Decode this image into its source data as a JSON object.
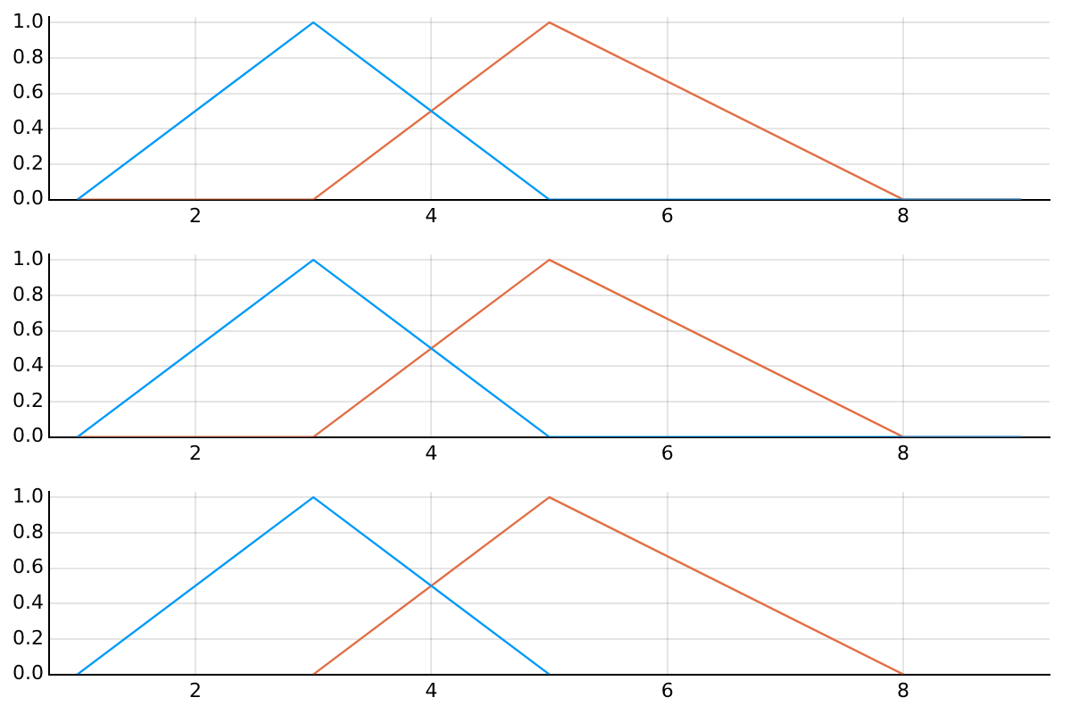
{
  "chart_data": [
    {
      "type": "line",
      "xlim": [
        0.76,
        9.24
      ],
      "ylim": [
        0,
        1.03
      ],
      "xticks": [
        2,
        4,
        6,
        8
      ],
      "yticks": [
        {
          "value": 0,
          "label": "0.0"
        },
        {
          "value": 0.2,
          "label": "0.2"
        },
        {
          "value": 0.4,
          "label": "0.4"
        },
        {
          "value": 0.6,
          "label": "0.6"
        },
        {
          "value": 0.8,
          "label": "0.8"
        },
        {
          "value": 1,
          "label": "1.0"
        }
      ],
      "grid": true,
      "legend": false,
      "series": [
        {
          "color": "#009af9",
          "x": [
            1,
            3,
            5,
            9
          ],
          "values": [
            0,
            1,
            0,
            0
          ]
        },
        {
          "color": "#e26f46",
          "x": [
            1,
            3,
            5,
            8,
            9
          ],
          "values": [
            0,
            0,
            1,
            0,
            0
          ]
        }
      ]
    },
    {
      "type": "line",
      "xlim": [
        0.76,
        9.24
      ],
      "ylim": [
        0,
        1.03
      ],
      "xticks": [
        2,
        4,
        6,
        8
      ],
      "yticks": [
        {
          "value": 0,
          "label": "0.0"
        },
        {
          "value": 0.2,
          "label": "0.2"
        },
        {
          "value": 0.4,
          "label": "0.4"
        },
        {
          "value": 0.6,
          "label": "0.6"
        },
        {
          "value": 0.8,
          "label": "0.8"
        },
        {
          "value": 1,
          "label": "1.0"
        }
      ],
      "grid": true,
      "legend": false,
      "series": [
        {
          "color": "#009af9",
          "x": [
            1,
            3,
            5,
            9
          ],
          "values": [
            0,
            1,
            0,
            0
          ]
        },
        {
          "color": "#e26f46",
          "x": [
            1,
            3,
            5,
            8,
            9
          ],
          "values": [
            0,
            0,
            1,
            0,
            0
          ]
        }
      ]
    },
    {
      "type": "line",
      "xlim": [
        0.76,
        9.24
      ],
      "ylim": [
        0,
        1.03
      ],
      "xticks": [
        2,
        4,
        6,
        8
      ],
      "yticks": [
        {
          "value": 0,
          "label": "0.0"
        },
        {
          "value": 0.2,
          "label": "0.2"
        },
        {
          "value": 0.4,
          "label": "0.4"
        },
        {
          "value": 0.6,
          "label": "0.6"
        },
        {
          "value": 0.8,
          "label": "0.8"
        },
        {
          "value": 1,
          "label": "1.0"
        }
      ],
      "grid": true,
      "legend": false,
      "series": [
        {
          "color": "#009af9",
          "x": [
            1,
            3,
            5
          ],
          "values": [
            0,
            1,
            0
          ]
        },
        {
          "color": "#e26f46",
          "x": [
            3,
            5,
            8
          ],
          "values": [
            0,
            1,
            0
          ]
        }
      ]
    }
  ]
}
